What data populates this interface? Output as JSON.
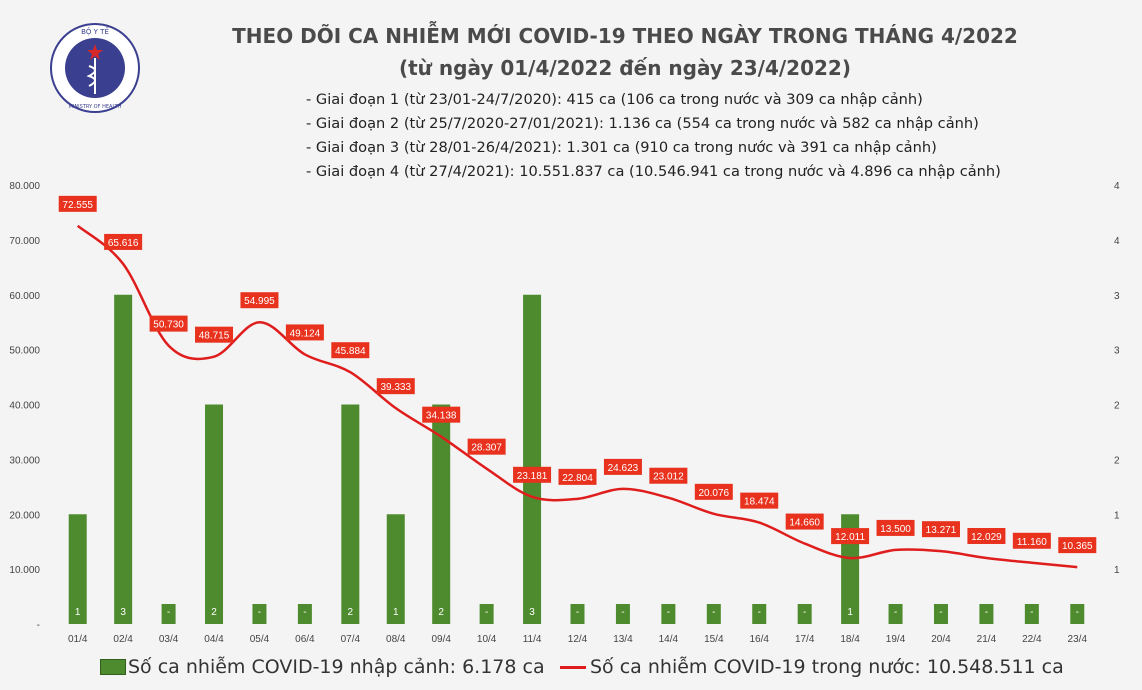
{
  "logo": {
    "text_top": "BỘ Y TẾ",
    "text_bottom": "MINISTRY OF HEALTH"
  },
  "header": {
    "title": "THEO DÕI CA NHIỄM MỚI COVID-19 THEO NGÀY TRONG THÁNG 4/2022",
    "subtitle": "(từ ngày 01/4/2022 đến ngày 23/4/2022)"
  },
  "notes": [
    "- Giai đoạn 1 (từ 23/01-24/7/2020): 415 ca (106 ca trong nước và 309 ca nhập cảnh)",
    "- Giai đoạn 2 (từ 25/7/2020-27/01/2021): 1.136 ca (554 ca trong nước và 582 ca nhập cảnh)",
    "- Giai đoạn 3 (từ 28/01-26/4/2021): 1.301 ca (910 ca trong nước và 391 ca nhập cảnh)",
    "- Giai đoạn 4 (từ 27/4/2021): 10.551.837 ca (10.546.941 ca trong nước và 4.896 ca nhập cảnh)"
  ],
  "colors": {
    "bar": "#4e8b2e",
    "line": "#e01d1d",
    "label_bg": "#e8321e"
  },
  "legend": {
    "bar_label": "Số ca nhiễm COVID-19 nhập cảnh: 6.178 ca",
    "line_label": "Số ca nhiễm COVID-19 trong nước: 10.548.511 ca"
  },
  "chart_data": {
    "type": "bar+line",
    "categories": [
      "01/4",
      "02/4",
      "03/4",
      "04/4",
      "05/4",
      "06/4",
      "07/4",
      "08/4",
      "09/4",
      "10/4",
      "11/4",
      "12/4",
      "13/4",
      "14/4",
      "15/4",
      "16/4",
      "17/4",
      "18/4",
      "19/4",
      "20/4",
      "21/4",
      "22/4",
      "23/4"
    ],
    "series": [
      {
        "name": "Số ca nhiễm COVID-19 nhập cảnh: 6.178 ca",
        "type": "bar",
        "axis": "right",
        "values": [
          1,
          3,
          0,
          2,
          0,
          0,
          2,
          1,
          2,
          0,
          3,
          0,
          0,
          0,
          0,
          0,
          0,
          1,
          0,
          0,
          0,
          0,
          0
        ],
        "labels": [
          "1",
          "3",
          "-",
          "2",
          "-",
          "-",
          "2",
          "1",
          "2",
          "-",
          "3",
          "-",
          "-",
          "-",
          "-",
          "-",
          "-",
          "1",
          "-",
          "-",
          "-",
          "-",
          "-"
        ]
      },
      {
        "name": "Số ca nhiễm COVID-19 trong nước: 10.548.511 ca",
        "type": "line",
        "axis": "left",
        "values": [
          72555,
          65616,
          50730,
          48715,
          54995,
          49124,
          45884,
          39333,
          34138,
          28307,
          23181,
          22804,
          24623,
          23012,
          20076,
          18474,
          14660,
          12011,
          13500,
          13271,
          12029,
          11160,
          10365
        ],
        "labels": [
          "72.555",
          "65.616",
          "50.730",
          "48.715",
          "54.995",
          "49.124",
          "45.884",
          "39.333",
          "34.138",
          "28.307",
          "23.181",
          "22.804",
          "24.623",
          "23.012",
          "20.076",
          "18.474",
          "14.660",
          "12.011",
          "13.500",
          "13.271",
          "12.029",
          "11.160",
          "10.365"
        ]
      }
    ],
    "y_left": {
      "range": [
        0,
        80000
      ],
      "ticks": [
        "-",
        "10.000",
        "20.000",
        "30.000",
        "40.000",
        "50.000",
        "60.000",
        "70.000",
        "80.000"
      ]
    },
    "y_right": {
      "range": [
        0,
        4
      ],
      "ticks": [
        "1",
        "1",
        "2",
        "2",
        "3",
        "3",
        "4",
        "4"
      ]
    },
    "legend_position": "bottom",
    "grid": false
  }
}
